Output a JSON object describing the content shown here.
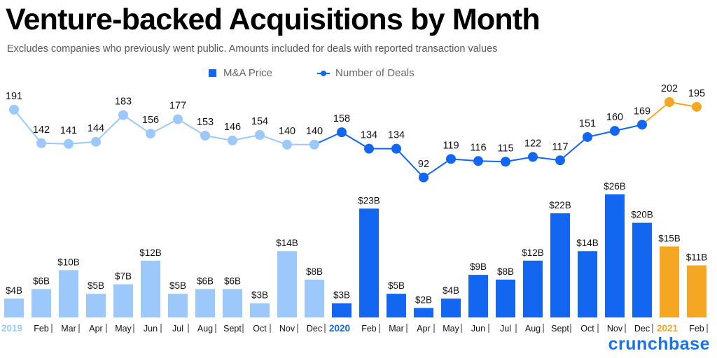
{
  "header": {
    "title": "Venture-backed Acquisitions by Month",
    "subtitle": "Excludes companies who previously went public. Amounts included for deals with reported transaction values"
  },
  "legend": {
    "bars_label": "M&A Price",
    "line_label": "Number of Deals"
  },
  "brand": "crunchbase",
  "colors": {
    "y2019": "#9cc8fb",
    "y2020": "#1366f0",
    "y2021": "#f5a623"
  },
  "chart_data": {
    "type": "bar",
    "title": "Venture-backed Acquisitions by Month",
    "xlabel": "",
    "ylabel": "",
    "categories": [
      "2019",
      "Feb",
      "Mar",
      "Apr",
      "May",
      "Jun",
      "Jul",
      "Aug",
      "Sept",
      "Oct",
      "Nov",
      "Dec",
      "2020",
      "Feb",
      "Mar",
      "Apr",
      "May",
      "Jun",
      "Jul",
      "Aug",
      "Sept",
      "Oct",
      "Nov",
      "Dec",
      "2021",
      "Feb"
    ],
    "year_groups": [
      "2019",
      "2019",
      "2019",
      "2019",
      "2019",
      "2019",
      "2019",
      "2019",
      "2019",
      "2019",
      "2019",
      "2019",
      "2020",
      "2020",
      "2020",
      "2020",
      "2020",
      "2020",
      "2020",
      "2020",
      "2020",
      "2020",
      "2020",
      "2020",
      "2021",
      "2021"
    ],
    "series": [
      {
        "name": "M&A Price",
        "type": "bar",
        "values": [
          4,
          6,
          10,
          5,
          7,
          12,
          5,
          6,
          6,
          3,
          14,
          8,
          3,
          23,
          5,
          2,
          4,
          9,
          8,
          12,
          22,
          14,
          26,
          20,
          15,
          11
        ],
        "labels": [
          "$4B",
          "$6B",
          "$10B",
          "$5B",
          "$7B",
          "$12B",
          "$5B",
          "$6B",
          "$6B",
          "$3B",
          "$14B",
          "$8B",
          "$3B",
          "$23B",
          "$5B",
          "$2B",
          "$4B",
          "$9B",
          "$8B",
          "$12B",
          "$22B",
          "$14B",
          "$26B",
          "$20B",
          "$15B",
          "$11B"
        ]
      },
      {
        "name": "Number of Deals",
        "type": "line",
        "values": [
          191,
          142,
          141,
          144,
          183,
          156,
          177,
          153,
          146,
          154,
          140,
          140,
          158,
          134,
          134,
          92,
          119,
          116,
          115,
          122,
          117,
          151,
          160,
          169,
          202,
          195
        ]
      }
    ]
  }
}
